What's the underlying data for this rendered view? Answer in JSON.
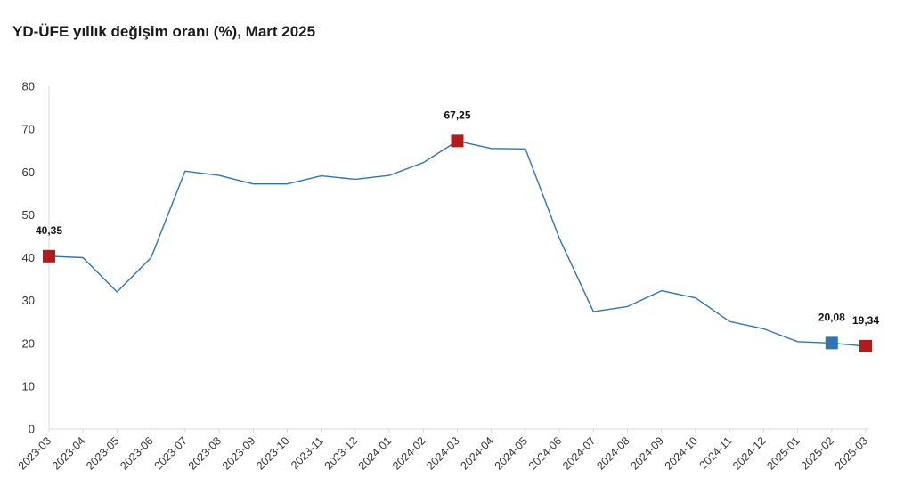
{
  "chart_data": {
    "type": "line",
    "title": "YD-ÜFE yıllık değişim oranı (%), Mart 2025",
    "xlabel": "",
    "ylabel": "",
    "categories": [
      "2023-03",
      "2023-04",
      "2023-05",
      "2023-06",
      "2023-07",
      "2023-08",
      "2023-09",
      "2023-10",
      "2023-11",
      "2023-12",
      "2024-01",
      "2024-02",
      "2024-03",
      "2024-04",
      "2024-05",
      "2024-06",
      "2024-07",
      "2024-08",
      "2024-09",
      "2024-10",
      "2024-11",
      "2024-12",
      "2025-01",
      "2025-02",
      "2025-03"
    ],
    "series": [
      {
        "name": "",
        "color": "#2e75b6",
        "values": [
          40.35,
          40.0,
          32.0,
          40.0,
          60.2,
          59.2,
          57.2,
          57.2,
          59.1,
          58.3,
          59.2,
          62.2,
          67.25,
          65.5,
          65.4,
          44.5,
          27.4,
          28.6,
          32.3,
          30.6,
          25.1,
          23.4,
          20.4,
          20.08,
          19.34
        ]
      }
    ],
    "ylim": [
      0,
      80
    ],
    "yticks": [
      0,
      10,
      20,
      30,
      40,
      50,
      60,
      70,
      80
    ],
    "grid": false,
    "highlights": [
      {
        "index": 0,
        "label": "40,35",
        "color": "#b31b1b"
      },
      {
        "index": 12,
        "label": "67,25",
        "color": "#b31b1b"
      },
      {
        "index": 23,
        "label": "20,08",
        "color": "#2e75b6"
      },
      {
        "index": 24,
        "label": "19,34",
        "color": "#b31b1b"
      }
    ]
  }
}
